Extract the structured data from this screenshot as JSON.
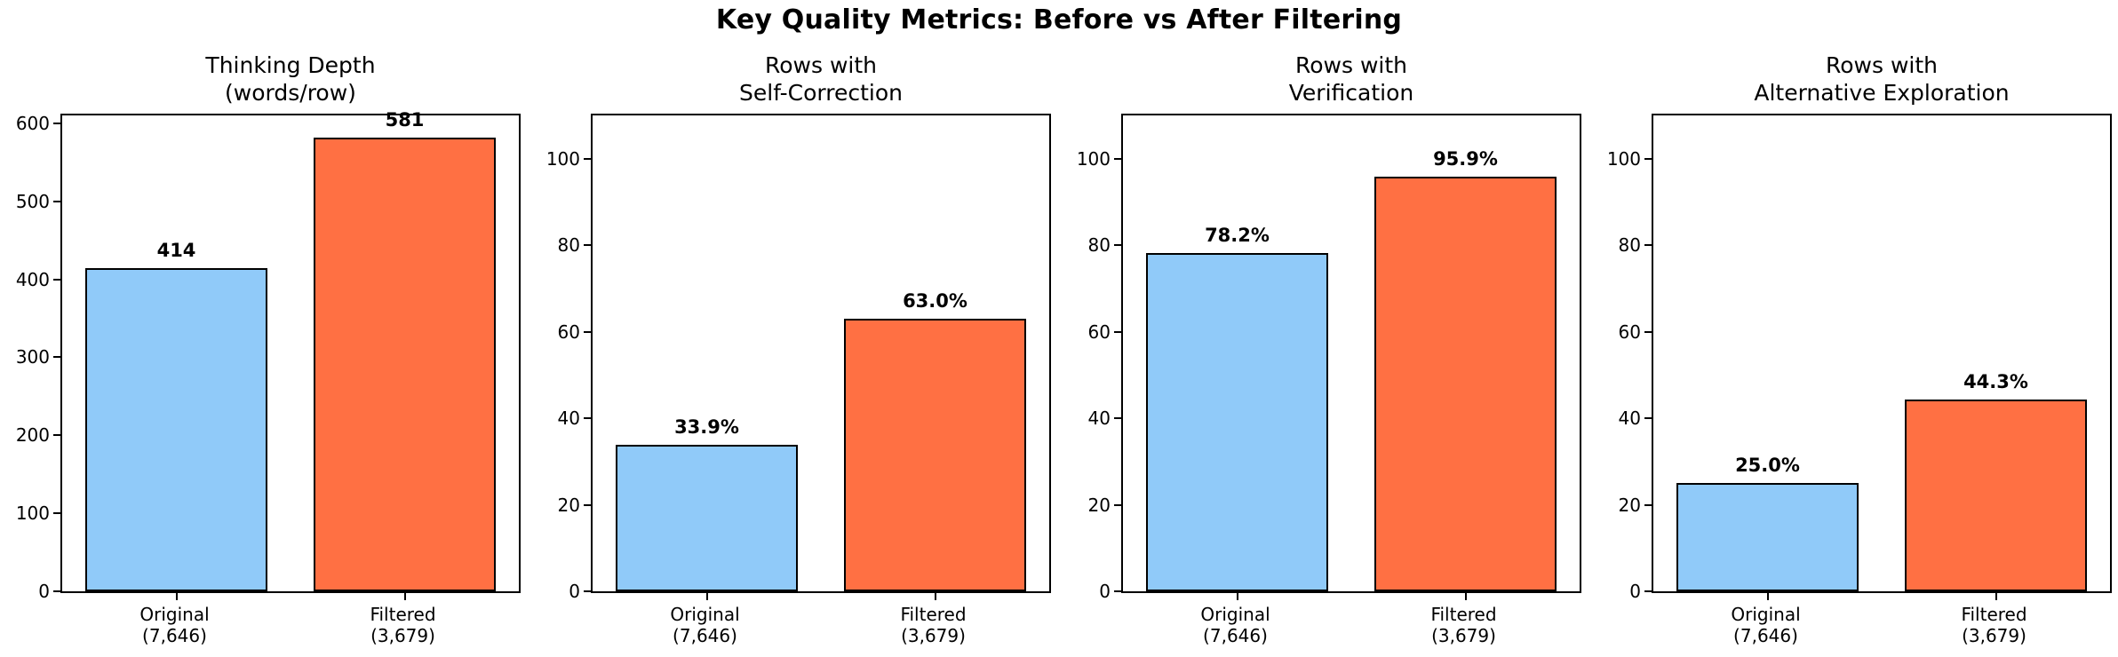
{
  "title": "Key Quality Metrics: Before vs After Filtering",
  "colors": {
    "bar_original": "#90CAF9",
    "bar_filtered": "#FF7043",
    "edge": "#000000",
    "background": "#FFFFFF",
    "text": "#000000"
  },
  "categories": [
    {
      "key": "original",
      "line1": "Original",
      "line2": "(7,646)"
    },
    {
      "key": "filtered",
      "line1": "Filtered",
      "line2": "(3,679)"
    }
  ],
  "chart_data": [
    {
      "type": "bar",
      "title": "Thinking Depth\n(words/row)",
      "categories": [
        "Original (7,646)",
        "Filtered (3,679)"
      ],
      "values": [
        414,
        581
      ],
      "value_labels": [
        "414",
        "581"
      ],
      "yticks": [
        0,
        100,
        200,
        300,
        400,
        500,
        600
      ],
      "ylim": [
        0,
        610
      ],
      "grid": false,
      "legend": false
    },
    {
      "type": "bar",
      "title": "Rows with\nSelf-Correction",
      "categories": [
        "Original (7,646)",
        "Filtered (3,679)"
      ],
      "values": [
        33.9,
        63.0
      ],
      "value_labels": [
        "33.9%",
        "63.0%"
      ],
      "yticks": [
        0,
        20,
        40,
        60,
        80,
        100
      ],
      "ylim": [
        0,
        110
      ],
      "grid": false,
      "legend": false
    },
    {
      "type": "bar",
      "title": "Rows with\nVerification",
      "categories": [
        "Original (7,646)",
        "Filtered (3,679)"
      ],
      "values": [
        78.2,
        95.9
      ],
      "value_labels": [
        "78.2%",
        "95.9%"
      ],
      "yticks": [
        0,
        20,
        40,
        60,
        80,
        100
      ],
      "ylim": [
        0,
        110
      ],
      "grid": false,
      "legend": false
    },
    {
      "type": "bar",
      "title": "Rows with\nAlternative Exploration",
      "categories": [
        "Original (7,646)",
        "Filtered (3,679)"
      ],
      "values": [
        25.0,
        44.3
      ],
      "value_labels": [
        "25.0%",
        "44.3%"
      ],
      "yticks": [
        0,
        20,
        40,
        60,
        80,
        100
      ],
      "ylim": [
        0,
        110
      ],
      "grid": false,
      "legend": false
    }
  ]
}
